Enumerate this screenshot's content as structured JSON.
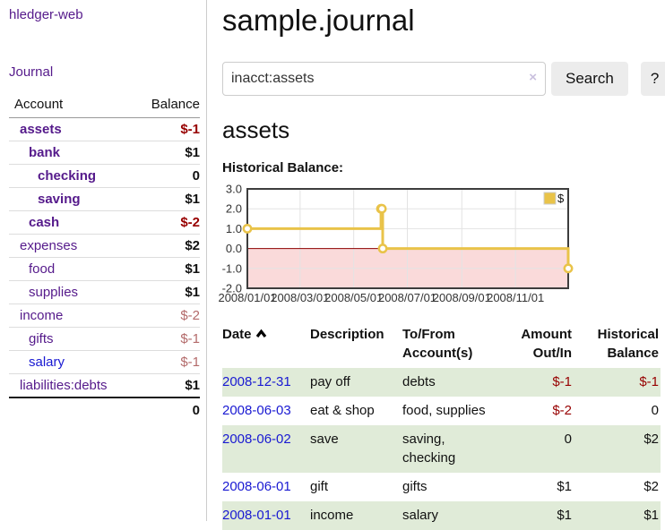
{
  "colors": {
    "link_purple": "#551a8b",
    "link_blue": "#1919d2",
    "negative_strong": "#970000",
    "negative_soft": "#b36a6a",
    "row_stripe_green": "#e0ebd8",
    "chart_line_gold": "#e9c349",
    "chart_negative_fill": "#fadada",
    "chart_zero_line": "#8b0000"
  },
  "sidebar": {
    "brand": "hledger-web",
    "nav_journal": "Journal",
    "header": {
      "account": "Account",
      "balance": "Balance"
    },
    "accounts": [
      {
        "name": "assets",
        "depth": 0,
        "bold": true,
        "balance": "$-1",
        "neg": "strong"
      },
      {
        "name": "bank",
        "depth": 1,
        "bold": true,
        "balance": "$1"
      },
      {
        "name": "checking",
        "depth": 2,
        "bold": true,
        "balance": "0"
      },
      {
        "name": "saving",
        "depth": 2,
        "bold": true,
        "balance": "$1"
      },
      {
        "name": "cash",
        "depth": 1,
        "bold": true,
        "balance": "$-2",
        "neg": "strong"
      },
      {
        "name": "expenses",
        "depth": 0,
        "bold": false,
        "balance": "$2"
      },
      {
        "name": "food",
        "depth": 1,
        "bold": false,
        "balance": "$1"
      },
      {
        "name": "supplies",
        "depth": 1,
        "bold": false,
        "balance": "$1"
      },
      {
        "name": "income",
        "depth": 0,
        "bold": false,
        "balance": "$-2",
        "neg": "soft"
      },
      {
        "name": "gifts",
        "depth": 1,
        "bold": false,
        "balance": "$-1",
        "neg": "soft"
      },
      {
        "name": "salary",
        "depth": 1,
        "bold": false,
        "balance": "$-1",
        "neg": "soft",
        "link_color": "blue"
      },
      {
        "name": "liabilities:debts",
        "depth": 0,
        "bold": false,
        "balance": "$1"
      }
    ],
    "total": "0"
  },
  "main": {
    "title": "sample.journal",
    "search": {
      "value": "inacct:assets",
      "clear_icon": "×",
      "search_label": "Search",
      "help_label": "?"
    },
    "account_heading": "assets",
    "chart_label": "Historical Balance:"
  },
  "chart_data": {
    "type": "line",
    "title": "Historical Balance",
    "step": true,
    "series": [
      {
        "name": "$",
        "points": [
          [
            "2008-01-01",
            1
          ],
          [
            "2008-06-01",
            2
          ],
          [
            "2008-06-02",
            2
          ],
          [
            "2008-06-03",
            0
          ],
          [
            "2008-12-31",
            -1
          ]
        ]
      }
    ],
    "xlim": [
      "2008-01-01",
      "2008-12-31"
    ],
    "ylim": [
      -2,
      3
    ],
    "x_ticks": [
      "2008/01/01",
      "2008/03/01",
      "2008/05/01",
      "2008/07/01",
      "2008/09/01",
      "2008/11/01"
    ],
    "y_ticks": [
      3.0,
      2.0,
      1.0,
      0.0,
      -1.0,
      -2.0
    ],
    "grid": true,
    "legend_position": "top-right",
    "negative_region_color": "#fadada",
    "zero_line_color": "#8b0000"
  },
  "register": {
    "columns": [
      {
        "label": "Date",
        "sorted": "asc"
      },
      {
        "label": "Description"
      },
      {
        "label": "To/From\nAccount(s)"
      },
      {
        "label": "Amount\nOut/In",
        "align": "right"
      },
      {
        "label": "Historical\nBalance",
        "align": "right"
      }
    ],
    "rows": [
      {
        "date": "2008-12-31",
        "description": "pay off",
        "accounts": "debts",
        "amount": "$-1",
        "amount_negative": true,
        "balance": "$-1",
        "balance_negative": true
      },
      {
        "date": "2008-06-03",
        "description": "eat & shop",
        "accounts": "food, supplies",
        "amount": "$-2",
        "amount_negative": true,
        "balance": "0",
        "balance_negative": false
      },
      {
        "date": "2008-06-02",
        "description": "save",
        "accounts": "saving,\nchecking",
        "amount": "0",
        "amount_negative": false,
        "balance": "$2",
        "balance_negative": false
      },
      {
        "date": "2008-06-01",
        "description": "gift",
        "accounts": "gifts",
        "amount": "$1",
        "amount_negative": false,
        "balance": "$2",
        "balance_negative": false
      },
      {
        "date": "2008-01-01",
        "description": "income",
        "accounts": "salary",
        "amount": "$1",
        "amount_negative": false,
        "balance": "$1",
        "balance_negative": false
      }
    ]
  }
}
